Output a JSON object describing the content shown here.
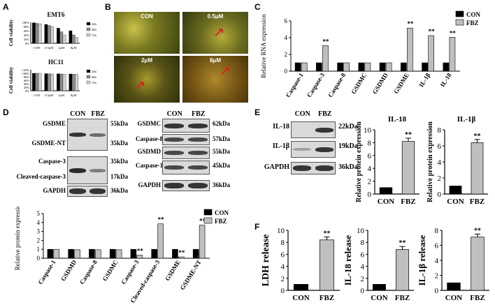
{
  "panels": {
    "A": "A",
    "B": "B",
    "C": "C",
    "D": "D",
    "E": "E",
    "F": "F"
  },
  "panel_A": {
    "charts": [
      {
        "title": "EMT6",
        "ylabel": "Cell viability",
        "yticks": [
          "100%",
          "80%",
          "60%",
          "40%",
          "20%",
          "0%"
        ],
        "categories": [
          "CON",
          "0.5μM",
          "2μM",
          "8μM"
        ],
        "legend": [
          "24h",
          "48h",
          "72h"
        ],
        "values": [
          [
            0.98,
            0.95,
            0.93
          ],
          [
            0.9,
            0.85,
            0.8
          ],
          [
            0.72,
            0.55,
            0.4
          ],
          [
            0.6,
            0.4,
            0.28
          ]
        ]
      },
      {
        "title": "HC11",
        "ylabel": "Cell viability",
        "yticks": [
          "120%",
          "100%",
          "80%",
          "60%",
          "40%",
          "20%",
          "0%"
        ],
        "categories": [
          "CON",
          "0.5μM",
          "2μM",
          "8μM"
        ],
        "legend": [
          "24h",
          "48h",
          "72h"
        ],
        "values": [
          [
            1.0,
            1.0,
            1.0
          ],
          [
            0.98,
            0.97,
            0.96
          ],
          [
            0.97,
            0.96,
            0.95
          ],
          [
            0.96,
            0.95,
            0.94
          ]
        ]
      }
    ]
  },
  "panel_B": {
    "labels": [
      "CON",
      "0.5μM",
      "2μM",
      "8μM"
    ]
  },
  "chart_data": [
    {
      "id": "C",
      "type": "bar",
      "ylabel": "Relative RNA expression",
      "yticks": [
        "0",
        "2",
        "4",
        "6"
      ],
      "ylim": [
        0,
        6
      ],
      "categories": [
        "Caspase-1",
        "Caspase-3",
        "Caspase-8",
        "GSDMC",
        "GSDMD",
        "GSDME",
        "IL-1β",
        "IL-18"
      ],
      "series": [
        {
          "name": "CON",
          "color": "#000000",
          "values": [
            1,
            1,
            1,
            1,
            1,
            1,
            1,
            1
          ]
        },
        {
          "name": "FBZ",
          "color": "#bfbfbf",
          "values": [
            1,
            3.05,
            1,
            1,
            1,
            5.15,
            4.25,
            4.05
          ]
        }
      ],
      "annotations": [
        "**",
        "**",
        "**",
        "**"
      ],
      "legend_position": "top-right"
    },
    {
      "id": "D",
      "type": "bar",
      "ylabel": "Relative protein expression",
      "yticks": [
        "0",
        "1",
        "2",
        "3",
        "4",
        "5"
      ],
      "ylim": [
        0,
        5
      ],
      "categories": [
        "Caspase-1",
        "GSDMD",
        "Caspase-8",
        "GSDMC",
        "Caspase-3",
        "Cleaved-caspase-3",
        "GSDME",
        "GSDME-NT"
      ],
      "series": [
        {
          "name": "CON",
          "color": "#000000",
          "values": [
            1,
            1,
            1,
            1,
            1,
            1,
            1,
            1
          ]
        },
        {
          "name": "FBZ",
          "color": "#bfbfbf",
          "values": [
            1,
            0.95,
            0.95,
            0.95,
            0.35,
            3.85,
            0.15,
            3.7
          ]
        }
      ],
      "annotations": [
        "**",
        "**",
        "**",
        "**"
      ],
      "legend_position": "top-right"
    },
    {
      "id": "E1",
      "type": "bar",
      "title": "IL-18",
      "ylabel": "Relative protein expression",
      "yticks": [
        "0",
        "2",
        "4",
        "6",
        "8",
        "10"
      ],
      "ylim": [
        0,
        10
      ],
      "categories": [
        "CON",
        "FBZ"
      ],
      "values": [
        1,
        8.2
      ],
      "annotation": "**"
    },
    {
      "id": "E2",
      "type": "bar",
      "title": "IL-1β",
      "ylabel": "Relative protein expression",
      "yticks": [
        "0",
        "2",
        "4",
        "6",
        "8"
      ],
      "ylim": [
        0,
        8
      ],
      "categories": [
        "CON",
        "FBZ"
      ],
      "values": [
        1,
        6.4
      ],
      "annotation": "**"
    },
    {
      "id": "F1",
      "type": "bar",
      "ylabel": "LDH release",
      "yticks": [
        "0",
        "2",
        "4",
        "6",
        "8",
        "10"
      ],
      "ylim": [
        0,
        10
      ],
      "categories": [
        "CON",
        "FBZ"
      ],
      "values": [
        1,
        8.4
      ],
      "annotation": "**"
    },
    {
      "id": "F2",
      "type": "bar",
      "ylabel": "IL-18 release",
      "yticks": [
        "0",
        "2",
        "4",
        "6",
        "8",
        "10"
      ],
      "ylim": [
        0,
        10
      ],
      "categories": [
        "CON",
        "FBZ"
      ],
      "values": [
        1,
        6.8
      ],
      "annotation": "**"
    },
    {
      "id": "F3",
      "type": "bar",
      "ylabel": "IL-1β release",
      "yticks": [
        "0",
        "2",
        "4",
        "6",
        "8"
      ],
      "ylim": [
        0,
        8
      ],
      "categories": [
        "CON",
        "FBZ"
      ],
      "values": [
        1,
        7.1
      ],
      "annotation": "**"
    }
  ],
  "blots": {
    "D_left": {
      "header": [
        "CON",
        "FBZ"
      ],
      "rows": [
        {
          "name": "GSDME",
          "size": "55kDa"
        },
        {
          "name": "GSDME-NT",
          "size": "35kDa"
        },
        {
          "name": "Caspase-3",
          "size": "35kDa"
        },
        {
          "name": "Cleaved-caspase-3",
          "size": "17kDa"
        },
        {
          "name": "GAPDH",
          "size": "36kDa"
        }
      ]
    },
    "D_right": {
      "header": [
        "CON",
        "FBZ"
      ],
      "rows": [
        {
          "name": "GSDMC",
          "size": "62kDa"
        },
        {
          "name": "Caspase-8",
          "size": "57kDa"
        },
        {
          "name": "GSDMD",
          "size": "55kDa"
        },
        {
          "name": "Caspase-1",
          "size": "45kDa"
        },
        {
          "name": "GAPDH",
          "size": "36kDa"
        }
      ]
    },
    "E": {
      "header": [
        "CON",
        "FBZ"
      ],
      "rows": [
        {
          "name": "IL-18",
          "size": "22kDa"
        },
        {
          "name": "IL-1β",
          "size": "19kDa"
        },
        {
          "name": "GAPDH",
          "size": "36kDa"
        }
      ]
    }
  }
}
